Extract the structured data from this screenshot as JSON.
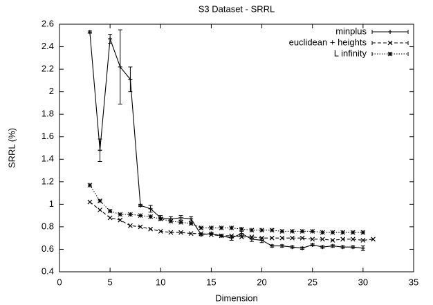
{
  "chart_data": {
    "type": "line",
    "title": "S3 Dataset - SRRL",
    "xlabel": "Dimension",
    "ylabel": "SRRL (%)",
    "xlim": [
      0,
      35
    ],
    "xticks": [
      0,
      5,
      10,
      15,
      20,
      25,
      30,
      35
    ],
    "ylim": [
      0.4,
      2.6
    ],
    "yticks": [
      0.4,
      0.6,
      0.8,
      1,
      1.2,
      1.4,
      1.6,
      1.8,
      2,
      2.2,
      2.4,
      2.6
    ],
    "legend": "top-right",
    "grid": false,
    "series": [
      {
        "name": "minplus",
        "color": "#000000",
        "dash": "solid",
        "marker": "plus",
        "x": [
          3,
          4,
          5,
          6,
          7,
          8,
          9,
          10,
          11,
          12,
          13,
          14,
          15,
          16,
          17,
          18,
          19,
          20,
          21,
          22,
          23,
          24,
          25,
          26,
          27,
          28,
          29,
          30
        ],
        "values": [
          2.53,
          1.48,
          2.47,
          2.22,
          2.11,
          0.99,
          0.96,
          0.88,
          0.87,
          0.88,
          0.87,
          0.73,
          0.74,
          0.72,
          0.7,
          0.74,
          0.69,
          0.68,
          0.63,
          0.63,
          0.62,
          0.61,
          0.64,
          0.62,
          0.63,
          0.62,
          0.62,
          0.61
        ],
        "errors": [
          0.01,
          0.1,
          0.04,
          0.33,
          0.11,
          0.01,
          0.03,
          0.02,
          0.02,
          0.02,
          0.02,
          0.01,
          0.01,
          0.01,
          0.02,
          0.02,
          0.02,
          0.02,
          0.01,
          0.01,
          0.01,
          0.01,
          0.01,
          0.01,
          0.01,
          0.01,
          0.01,
          0.02
        ]
      },
      {
        "name": "euclidean + heights",
        "color": "#000000",
        "dash": "dashed",
        "marker": "cross",
        "x": [
          3,
          4,
          5,
          6,
          7,
          8,
          9,
          10,
          11,
          12,
          13,
          14,
          15,
          16,
          17,
          18,
          19,
          20,
          21,
          22,
          23,
          24,
          25,
          26,
          27,
          28,
          29,
          30,
          31
        ],
        "values": [
          1.02,
          0.95,
          0.88,
          0.86,
          0.81,
          0.8,
          0.78,
          0.76,
          0.75,
          0.75,
          0.74,
          0.74,
          0.73,
          0.72,
          0.72,
          0.71,
          0.71,
          0.7,
          0.7,
          0.7,
          0.7,
          0.7,
          0.69,
          0.69,
          0.68,
          0.69,
          0.69,
          0.68,
          0.69
        ]
      },
      {
        "name": "L infinity",
        "color": "#000000",
        "dash": "dotted",
        "marker": "star",
        "x": [
          3,
          4,
          5,
          6,
          7,
          8,
          9,
          10,
          11,
          12,
          13,
          14,
          15,
          16,
          17,
          18,
          19,
          20,
          21,
          22,
          23,
          24,
          25,
          26,
          27,
          28,
          29,
          30
        ],
        "values": [
          1.17,
          1.03,
          0.94,
          0.91,
          0.91,
          0.9,
          0.89,
          0.87,
          0.85,
          0.84,
          0.83,
          0.79,
          0.79,
          0.79,
          0.79,
          0.78,
          0.77,
          0.77,
          0.77,
          0.76,
          0.76,
          0.76,
          0.76,
          0.75,
          0.75,
          0.75,
          0.75,
          0.75
        ]
      }
    ]
  }
}
